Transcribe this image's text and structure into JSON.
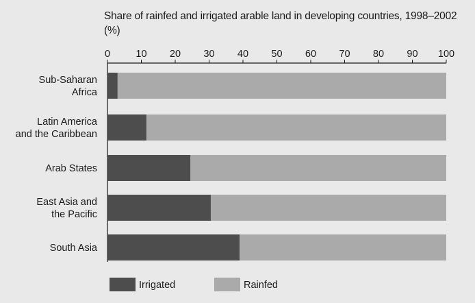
{
  "chart_data": {
    "type": "bar",
    "orientation": "horizontal",
    "stacked": true,
    "title": "Share of rainfed and irrigated arable land in developing countries, 1998–2002 (%)",
    "xlim": [
      0,
      100
    ],
    "x_ticks": [
      "0",
      "10",
      "20",
      "30",
      "40",
      "50",
      "60",
      "70",
      "80",
      "90",
      "100"
    ],
    "x_axis_position": "top",
    "grid": false,
    "legend_position": "bottom-left",
    "categories": [
      [
        "Sub-Saharan",
        "Africa"
      ],
      [
        "Latin America",
        "and  the Caribbean"
      ],
      [
        "Arab States"
      ],
      [
        "East Asia and",
        "the Pacific"
      ],
      [
        "South Asia"
      ]
    ],
    "series": [
      {
        "name": "Irrigated",
        "color": "#4d4d4d",
        "values": [
          3,
          11.5,
          24.5,
          30.5,
          39
        ]
      },
      {
        "name": "Rainfed",
        "color": "#aaaaaa",
        "values": [
          97,
          88.5,
          75.5,
          69.5,
          61
        ]
      }
    ]
  }
}
